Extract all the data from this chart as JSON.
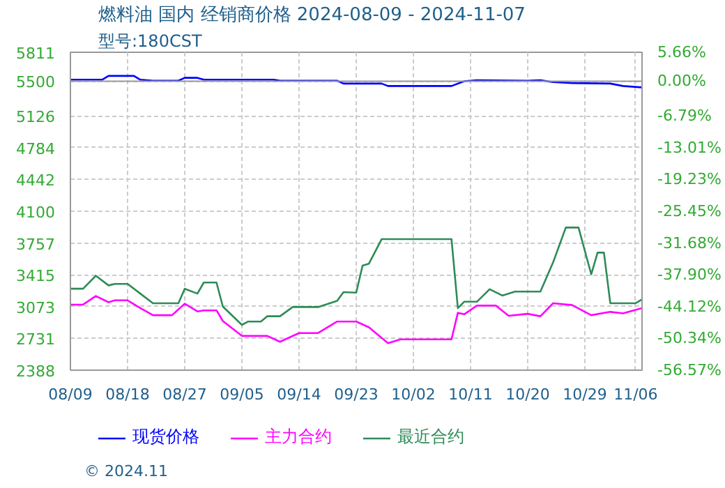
{
  "chart_data": {
    "type": "line",
    "title": "燃料油 国内 经销商价格 2024-08-09 - 2024-11-07",
    "subtitle": "型号:180CST",
    "annotations": [
      "© 2024.11"
    ],
    "xlim": [
      "2024-08-09",
      "2024-11-07"
    ],
    "xticks": [
      {
        "value": "2024-08-09",
        "label": "08/09"
      },
      {
        "value": "2024-08-18",
        "label": "08/18"
      },
      {
        "value": "2024-08-27",
        "label": "08/27"
      },
      {
        "value": "2024-09-05",
        "label": "09/05"
      },
      {
        "value": "2024-09-14",
        "label": "09/14"
      },
      {
        "value": "2024-09-23",
        "label": "09/23"
      },
      {
        "value": "2024-10-02",
        "label": "10/02"
      },
      {
        "value": "2024-10-11",
        "label": "10/11"
      },
      {
        "value": "2024-10-20",
        "label": "10/20"
      },
      {
        "value": "2024-10-29",
        "label": "10/29"
      },
      {
        "value": "2024-11-06",
        "label": "11/06"
      }
    ],
    "ylim": [
      2388,
      5811
    ],
    "yticks": [
      2388,
      2731,
      3073,
      3415,
      3757,
      4100,
      4442,
      4784,
      5126,
      5500,
      5811
    ],
    "y2lim": [
      -56.57,
      5.66
    ],
    "y2ticks": [
      {
        "value": -56.57,
        "label": "-56.57%"
      },
      {
        "value": -50.34,
        "label": "-50.34%"
      },
      {
        "value": -44.12,
        "label": "-44.12%"
      },
      {
        "value": -37.9,
        "label": "-37.90%"
      },
      {
        "value": -31.68,
        "label": "-31.68%"
      },
      {
        "value": -25.45,
        "label": "-25.45%"
      },
      {
        "value": -19.23,
        "label": "-19.23%"
      },
      {
        "value": -13.01,
        "label": "-13.01%"
      },
      {
        "value": -6.79,
        "label": "-6.79%"
      },
      {
        "value": 0,
        "label": "0.00%"
      },
      {
        "value": 5.66,
        "label": "5.66%"
      }
    ],
    "ref_lines": [
      {
        "axis": "y",
        "value": 5500,
        "label": null,
        "color": "#999999"
      }
    ],
    "grid": true,
    "legend": "bottom",
    "marker": "none",
    "line_style": "solid",
    "series": [
      {
        "name": "现货价格",
        "color": "#0000ff",
        "x": [
          "2024-08-09",
          "2024-08-14",
          "2024-08-15",
          "2024-08-19",
          "2024-08-20",
          "2024-08-22",
          "2024-08-26",
          "2024-08-27",
          "2024-08-29",
          "2024-08-30",
          "2024-09-10",
          "2024-09-11",
          "2024-09-20",
          "2024-09-21",
          "2024-09-27",
          "2024-09-28",
          "2024-10-08",
          "2024-10-10",
          "2024-10-12",
          "2024-10-20",
          "2024-10-22",
          "2024-10-24",
          "2024-10-27",
          "2024-11-02",
          "2024-11-04",
          "2024-11-07"
        ],
        "values": [
          5516,
          5516,
          5557,
          5557,
          5516,
          5505,
          5505,
          5536,
          5536,
          5516,
          5516,
          5505,
          5505,
          5474,
          5474,
          5448,
          5448,
          5500,
          5510,
          5505,
          5510,
          5490,
          5480,
          5474,
          5448,
          5433
        ]
      },
      {
        "name": "主力合约",
        "color": "#ff00ff",
        "x": [
          "2024-08-09",
          "2024-08-11",
          "2024-08-13",
          "2024-08-15",
          "2024-08-16",
          "2024-08-18",
          "2024-08-20",
          "2024-08-22",
          "2024-08-25",
          "2024-08-27",
          "2024-08-29",
          "2024-08-30",
          "2024-09-01",
          "2024-09-02",
          "2024-09-05",
          "2024-09-09",
          "2024-09-11",
          "2024-09-14",
          "2024-09-17",
          "2024-09-20",
          "2024-09-23",
          "2024-09-25",
          "2024-09-28",
          "2024-09-30",
          "2024-10-08",
          "2024-10-09",
          "2024-10-10",
          "2024-10-12",
          "2024-10-15",
          "2024-10-17",
          "2024-10-20",
          "2024-10-22",
          "2024-10-24",
          "2024-10-27",
          "2024-10-30",
          "2024-11-02",
          "2024-11-04",
          "2024-11-07"
        ],
        "values": [
          3094,
          3094,
          3187,
          3120,
          3140,
          3140,
          3057,
          2980,
          2980,
          3104,
          3021,
          3032,
          3032,
          2917,
          2757,
          2757,
          2694,
          2788,
          2788,
          2912,
          2912,
          2850,
          2679,
          2720,
          2720,
          3006,
          2990,
          3083,
          3083,
          2974,
          2995,
          2969,
          3109,
          3089,
          2980,
          3016,
          3000,
          3057
        ]
      },
      {
        "name": "最近合约",
        "color": "#2e8b57",
        "x": [
          "2024-08-09",
          "2024-08-11",
          "2024-08-13",
          "2024-08-15",
          "2024-08-16",
          "2024-08-18",
          "2024-08-20",
          "2024-08-22",
          "2024-08-26",
          "2024-08-27",
          "2024-08-29",
          "2024-08-30",
          "2024-09-01",
          "2024-09-02",
          "2024-09-05",
          "2024-09-06",
          "2024-09-08",
          "2024-09-09",
          "2024-09-11",
          "2024-09-13",
          "2024-09-17",
          "2024-09-20",
          "2024-09-21",
          "2024-09-23",
          "2024-09-24",
          "2024-09-25",
          "2024-09-27",
          "2024-10-08",
          "2024-10-09",
          "2024-10-10",
          "2024-10-12",
          "2024-10-14",
          "2024-10-16",
          "2024-10-18",
          "2024-10-22",
          "2024-10-24",
          "2024-10-26",
          "2024-10-28",
          "2024-10-30",
          "2024-10-31",
          "2024-11-01",
          "2024-11-02",
          "2024-11-06",
          "2024-11-07"
        ],
        "values": [
          3265,
          3265,
          3405,
          3301,
          3317,
          3317,
          3213,
          3109,
          3109,
          3265,
          3213,
          3332,
          3332,
          3073,
          2876,
          2912,
          2912,
          2969,
          2969,
          3068,
          3068,
          3135,
          3229,
          3223,
          3514,
          3535,
          3799,
          3799,
          3057,
          3125,
          3125,
          3260,
          3192,
          3234,
          3234,
          3550,
          3924,
          3924,
          3420,
          3654,
          3654,
          3109,
          3109,
          3151
        ]
      }
    ]
  }
}
